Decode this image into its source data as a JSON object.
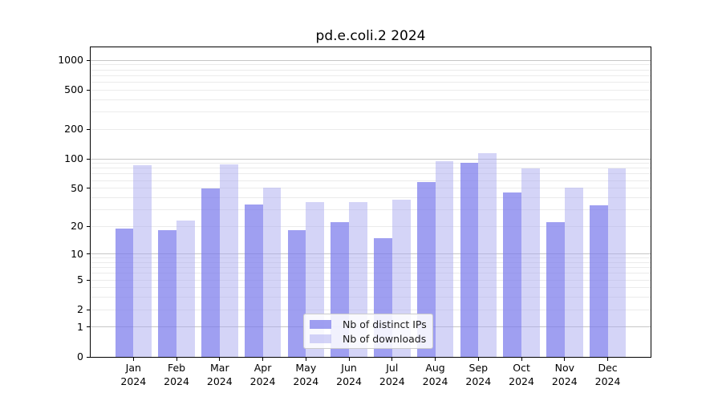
{
  "title": "pd.e.coli.2 2024",
  "chart_data": {
    "type": "bar",
    "title": "pd.e.coli.2 2024",
    "months": [
      "Jan",
      "Feb",
      "Mar",
      "Apr",
      "May",
      "Jun",
      "Jul",
      "Aug",
      "Sep",
      "Oct",
      "Nov",
      "Dec"
    ],
    "year_label": "2024",
    "x_categories": [
      "Jan 2024",
      "Feb 2024",
      "Mar 2024",
      "Apr 2024",
      "May 2024",
      "Jun 2024",
      "Jul 2024",
      "Aug 2024",
      "Sep 2024",
      "Oct 2024",
      "Nov 2024",
      "Dec 2024"
    ],
    "series": [
      {
        "name": "Nb of distinct IPs",
        "color": "rgba(122,122,235,0.72)",
        "solid_color": "#9f9ff1",
        "values": [
          19,
          18,
          50,
          34,
          18,
          22,
          15,
          58,
          91,
          45,
          22,
          33
        ]
      },
      {
        "name": "Nb of downloads",
        "color": "rgba(170,170,240,0.5)",
        "solid_color": "#d5d5f8",
        "values": [
          86,
          23,
          88,
          51,
          36,
          36,
          38,
          95,
          115,
          80,
          51,
          80
        ]
      }
    ],
    "xlabel": "",
    "ylabel": "",
    "y_scale": "log1p (log scale with 0 baseline)",
    "y_ticks": [
      0,
      1,
      2,
      5,
      10,
      20,
      50,
      100,
      200,
      500,
      1000
    ],
    "ylim": [
      0,
      1360
    ],
    "grid": "horizontal major + log minor gridlines",
    "legend_position": "bottom-center inside plot",
    "colors": {
      "spine": "#000000",
      "major_grid": "#c6c6c6",
      "minor_grid": "#ebebeb",
      "legend_border": "#cccccc"
    }
  }
}
